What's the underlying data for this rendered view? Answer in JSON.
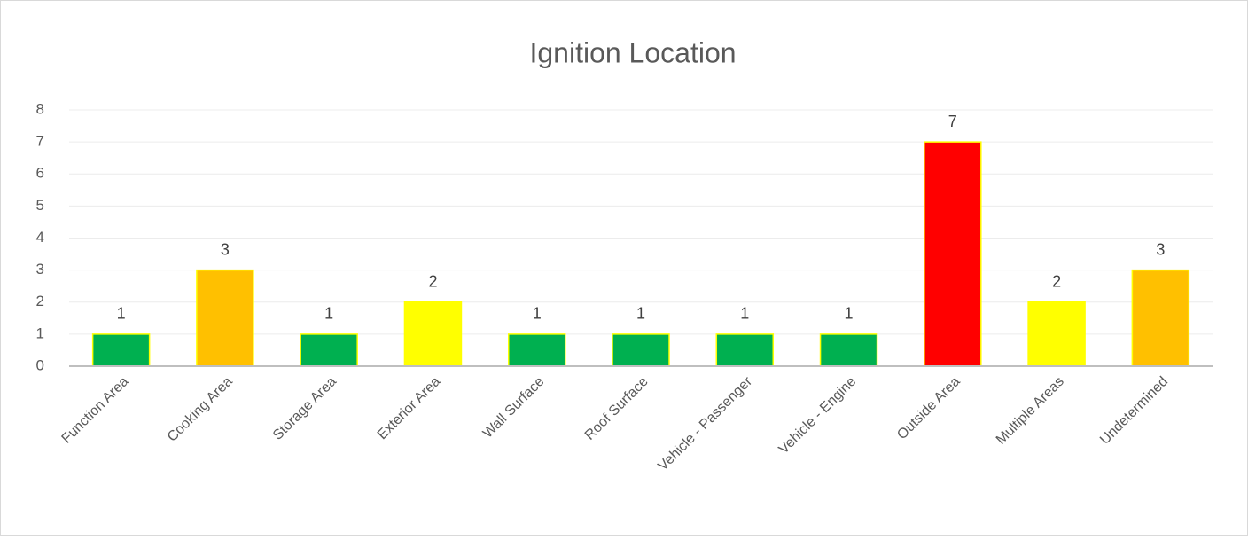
{
  "chart_data": {
    "type": "bar",
    "title": "Ignition Location",
    "categories": [
      "Function Area",
      "Cooking Area",
      "Storage Area",
      "Exterior Area",
      "Wall Surface",
      "Roof Surface",
      "Vehicle - Passenger",
      "Vehicle - Engine",
      "Outside Area",
      "Multiple Areas",
      "Undetermined"
    ],
    "values": [
      1,
      3,
      1,
      2,
      1,
      1,
      1,
      1,
      7,
      2,
      3
    ],
    "colors": [
      "#00b050",
      "#ffc000",
      "#00b050",
      "#ffff00",
      "#00b050",
      "#00b050",
      "#00b050",
      "#00b050",
      "#ff0000",
      "#ffff00",
      "#ffc000"
    ],
    "edgecolor": "#ffff00",
    "ylim": [
      0,
      8
    ],
    "yticks": [
      0,
      1,
      2,
      3,
      4,
      5,
      6,
      7,
      8
    ],
    "grid": true
  }
}
